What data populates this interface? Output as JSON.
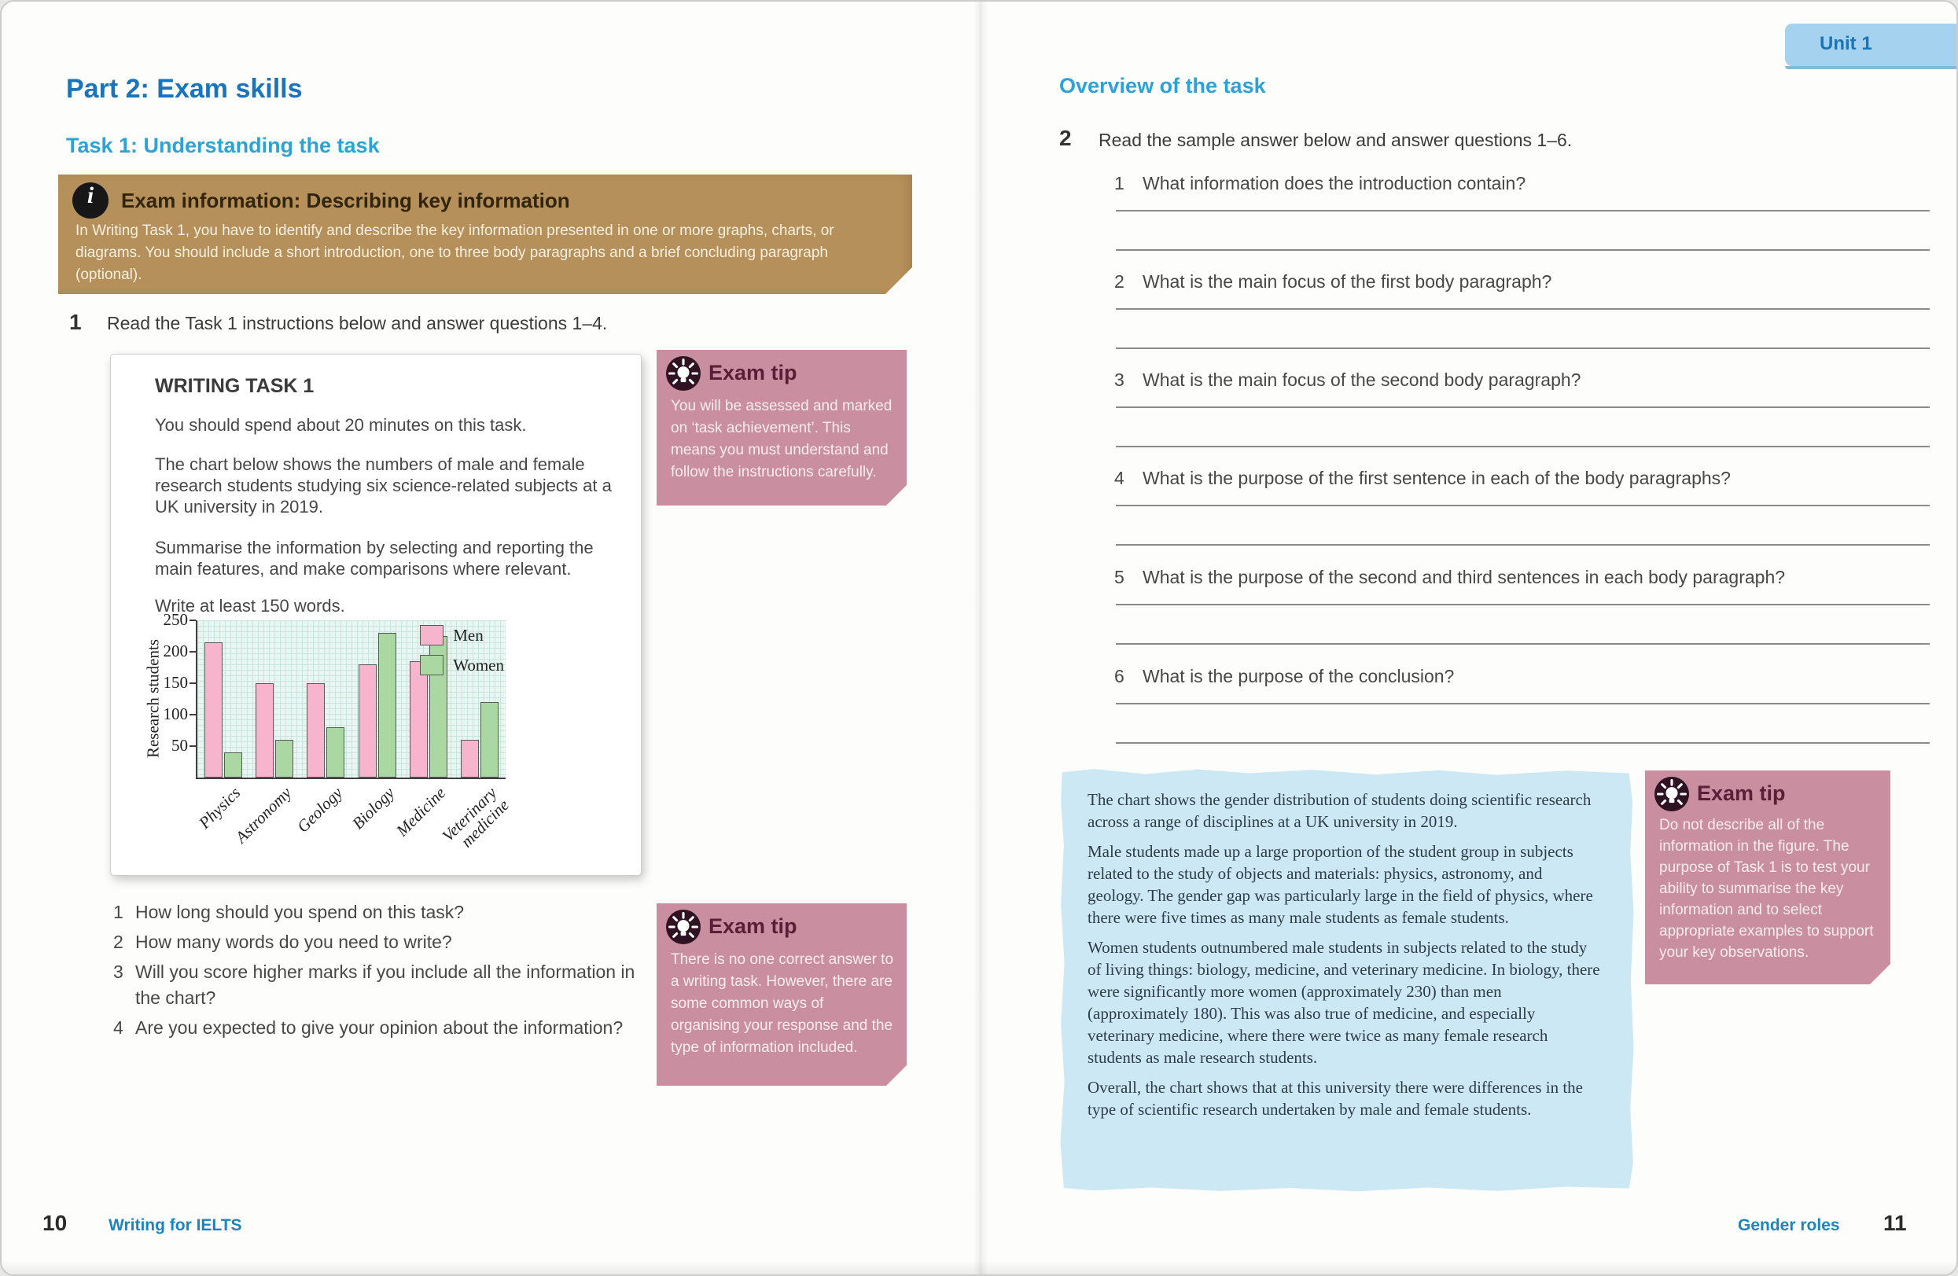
{
  "unit_tab": {
    "label": "Unit 1"
  },
  "left_page": {
    "part_heading": "Part 2: Exam skills",
    "task_heading": "Task 1: Understanding the task",
    "exam_info": {
      "icon": "info-icon",
      "icon_glyph": "i",
      "title": "Exam information: Describing key information",
      "body": "In Writing Task 1, you have to identify and describe the key information presented in one or more graphs, charts, or diagrams. You should include a short introduction, one to three body paragraphs and a brief concluding paragraph (optional)."
    },
    "exercise": {
      "number": "1",
      "instruction": "Read the Task 1 instructions below and answer questions 1–4."
    },
    "writing_task": {
      "title": "WRITING TASK 1",
      "para1": "You should spend about 20 minutes on this task.",
      "para2": "The chart below shows the numbers of male and female research students studying six science-related subjects at a UK university in 2019.",
      "para3": "Summarise the information by selecting and reporting the main features, and make comparisons where relevant.",
      "para4": "Write at least 150 words."
    },
    "questions": [
      {
        "number": "1",
        "text": "How long should you spend on this task?"
      },
      {
        "number": "2",
        "text": "How many words do you need to write?"
      },
      {
        "number": "3",
        "text": "Will you score higher marks if you include all the information in the chart?"
      },
      {
        "number": "4",
        "text": "Are you expected to give your opinion about the information?"
      }
    ],
    "tip1": {
      "icon": "lightbulb-icon",
      "title": "Exam tip",
      "body": "You will be assessed and marked on ‘task achievement’. This means you must understand and follow the instructions carefully."
    },
    "tip2": {
      "icon": "lightbulb-icon",
      "title": "Exam tip",
      "body": "There is no one correct answer to a writing task. However, there are some common ways of organising your response and the type of information included."
    },
    "footer": {
      "page_number": "10",
      "book_title": "Writing for IELTS"
    }
  },
  "right_page": {
    "heading": "Overview of the task",
    "exercise": {
      "number": "2",
      "instruction": "Read the sample answer below and answer questions 1–6."
    },
    "questions": [
      {
        "number": "1",
        "text": "What information does the introduction contain?"
      },
      {
        "number": "2",
        "text": "What is the main focus of the first body paragraph?"
      },
      {
        "number": "3",
        "text": "What is the main focus of the second body paragraph?"
      },
      {
        "number": "4",
        "text": "What is the purpose of the first sentence in each of the body paragraphs?"
      },
      {
        "number": "5",
        "text": "What is the purpose of the second and third sentences in each body paragraph?"
      },
      {
        "number": "6",
        "text": "What is the purpose of the conclusion?"
      }
    ],
    "sample_answer": {
      "para1": "The chart shows the gender distribution of students doing scientific research across a range of disciplines at a UK university in 2019.",
      "para2": "Male students made up a large proportion of the student group in subjects related to the study of objects and materials: physics, astronomy, and geology. The gender gap was particularly large in the field of physics, where there were five times as many male students as female students.",
      "para3": "Women students outnumbered male students in subjects related to the study of living things: biology, medicine, and veterinary medicine. In biology, there were significantly more women (approximately 230) than men (approximately 180). This was also true of medicine, and especially veterinary medicine, where there were twice as many female research students as male research students.",
      "para4": "Overall, the chart shows that at this university there were differences in the type of scientific research undertaken by male and female students."
    },
    "tip3": {
      "icon": "lightbulb-icon",
      "title": "Exam tip",
      "body": "Do not describe all of the information in the figure. The purpose of Task 1 is to test your ability to summarise the key information and to select appropriate examples to support your key observations."
    },
    "footer": {
      "section_title": "Gender roles",
      "page_number": "11"
    }
  },
  "chart_data": {
    "type": "bar",
    "title": "",
    "xlabel": "",
    "ylabel": "Research students",
    "ylim": [
      0,
      250
    ],
    "yticks": [
      50,
      100,
      150,
      200,
      250
    ],
    "grid": true,
    "legend_position": "top-right",
    "categories": [
      "Physics",
      "Astronomy",
      "Geology",
      "Biology",
      "Medicine",
      "Veterinary medicine"
    ],
    "series": [
      {
        "name": "Men",
        "color": "#f6b5cc",
        "values": [
          215,
          150,
          150,
          180,
          185,
          60
        ]
      },
      {
        "name": "Women",
        "color": "#abd7a3",
        "values": [
          40,
          60,
          80,
          230,
          225,
          120
        ]
      }
    ]
  },
  "colors": {
    "part_heading_blue": "#1b74ba",
    "section_heading_blue": "#2aa3d9",
    "exam_info_tan": "#b5905a",
    "exam_tip_pink": "#c98fa1",
    "unit_tab_blue": "#a5d2ef",
    "sample_box_blue": "#cde8f5",
    "men_bar_pink": "#f6b5cc",
    "women_bar_green": "#abd7a3"
  }
}
